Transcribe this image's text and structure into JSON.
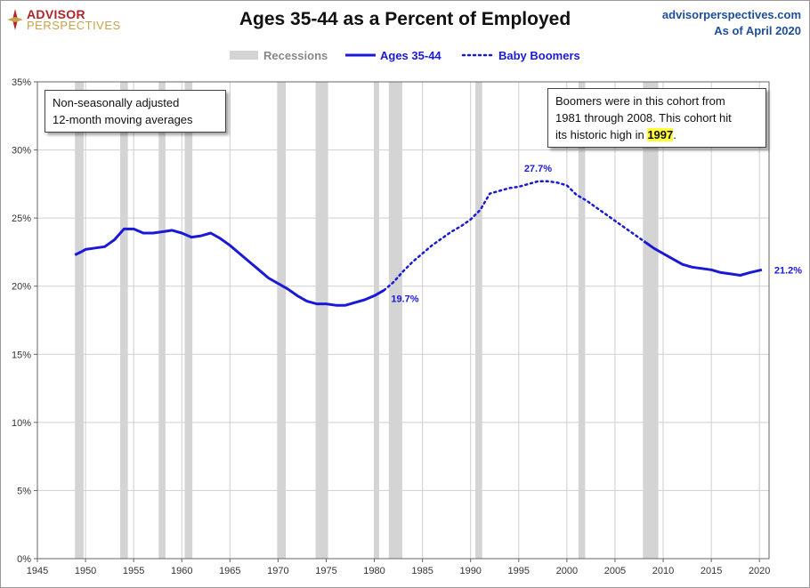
{
  "header": {
    "brand_line1": "ADVISOR",
    "brand_line2": "PERSPECTIVES",
    "title": "Ages 35-44 as a Percent of Employed",
    "site": "advisorperspectives.com",
    "as_of": "As of April 2020"
  },
  "annotations": {
    "note_left": [
      "Non-seasonally adjusted",
      "12-month moving averages"
    ],
    "note_right_lines": [
      "Boomers were in this cohort from",
      "1981  through 2008.  This cohort hit"
    ],
    "note_right_prefix": "its historic high in ",
    "note_right_highlight": "1997",
    "note_right_suffix": "."
  },
  "colors": {
    "line": "#1a1ad6",
    "recession": "#d4d4d4",
    "grid": "#cfcfcf",
    "axis": "#666666"
  },
  "chart_data": {
    "type": "line",
    "title": "Ages 35-44 as a Percent of Employed",
    "xlabel": "",
    "ylabel": "",
    "xlim": [
      1945,
      2021
    ],
    "ylim": [
      0,
      35
    ],
    "y_format": "percent",
    "x_ticks": [
      1945,
      1950,
      1955,
      1960,
      1965,
      1970,
      1975,
      1980,
      1985,
      1990,
      1995,
      2000,
      2005,
      2010,
      2015,
      2020
    ],
    "y_ticks": [
      0,
      5,
      10,
      15,
      20,
      25,
      30,
      35
    ],
    "grid": true,
    "legend_position": "top-center",
    "legend": [
      "Recessions",
      "Ages 35-44",
      "Baby Boomers"
    ],
    "recessions": [
      [
        1948.9,
        1949.8
      ],
      [
        1953.6,
        1954.4
      ],
      [
        1957.6,
        1958.3
      ],
      [
        1960.3,
        1961.1
      ],
      [
        1969.9,
        1970.8
      ],
      [
        1973.9,
        1975.2
      ],
      [
        1980.0,
        1980.5
      ],
      [
        1981.5,
        1982.9
      ],
      [
        1990.5,
        1991.2
      ],
      [
        2001.2,
        2001.9
      ],
      [
        2007.9,
        2009.5
      ]
    ],
    "series": [
      {
        "name": "Ages 35-44",
        "style": "solid",
        "x": [
          1948.9,
          1949.5,
          1950.0,
          1951.0,
          1952.0,
          1953.0,
          1954.0,
          1955.0,
          1956.0,
          1957.0,
          1958.0,
          1959.0,
          1960.0,
          1961.0,
          1962.0,
          1963.0,
          1964.0,
          1965.0,
          1966.0,
          1967.0,
          1968.0,
          1969.0,
          1970.0,
          1971.0,
          1972.0,
          1973.0,
          1974.0,
          1975.0,
          1976.0,
          1977.0,
          1978.0,
          1979.0,
          1980.0,
          1981.0
        ],
        "y": [
          22.3,
          22.5,
          22.7,
          22.8,
          22.9,
          23.4,
          24.2,
          24.2,
          23.9,
          23.9,
          24.0,
          24.1,
          23.9,
          23.6,
          23.7,
          23.9,
          23.5,
          23.0,
          22.4,
          21.8,
          21.2,
          20.6,
          20.2,
          19.8,
          19.3,
          18.9,
          18.7,
          18.7,
          18.6,
          18.6,
          18.8,
          19.0,
          19.3,
          19.7
        ]
      },
      {
        "name": "Baby Boomers",
        "style": "dotted",
        "x": [
          1981.0,
          1982.0,
          1983.0,
          1984.0,
          1985.0,
          1986.0,
          1987.0,
          1988.0,
          1989.0,
          1990.0,
          1991.0,
          1992.0,
          1993.0,
          1994.0,
          1995.0,
          1996.0,
          1997.0,
          1998.0,
          1999.0,
          2000.0,
          2001.0,
          2002.0,
          2003.0,
          2004.0,
          2005.0,
          2006.0,
          2007.0,
          2008.0
        ],
        "y": [
          19.7,
          20.3,
          21.1,
          21.8,
          22.4,
          23.0,
          23.5,
          24.0,
          24.4,
          24.9,
          25.6,
          26.8,
          27.0,
          27.2,
          27.3,
          27.5,
          27.7,
          27.7,
          27.6,
          27.4,
          26.7,
          26.3,
          25.8,
          25.3,
          24.8,
          24.3,
          23.8,
          23.3
        ]
      },
      {
        "name": "Ages 35-44",
        "style": "solid",
        "x": [
          2008.0,
          2009.0,
          2010.0,
          2011.0,
          2012.0,
          2013.0,
          2014.0,
          2015.0,
          2016.0,
          2017.0,
          2018.0,
          2019.0,
          2020.25
        ],
        "y": [
          23.3,
          22.8,
          22.4,
          22.0,
          21.6,
          21.4,
          21.3,
          21.2,
          21.0,
          20.9,
          20.8,
          21.0,
          21.2
        ]
      }
    ],
    "data_labels": [
      {
        "x": 1981.0,
        "y": 19.7,
        "text": "19.7%"
      },
      {
        "x": 1997.0,
        "y": 27.7,
        "text": "27.7%"
      },
      {
        "x": 2020.25,
        "y": 21.2,
        "text": "21.2%"
      }
    ]
  }
}
